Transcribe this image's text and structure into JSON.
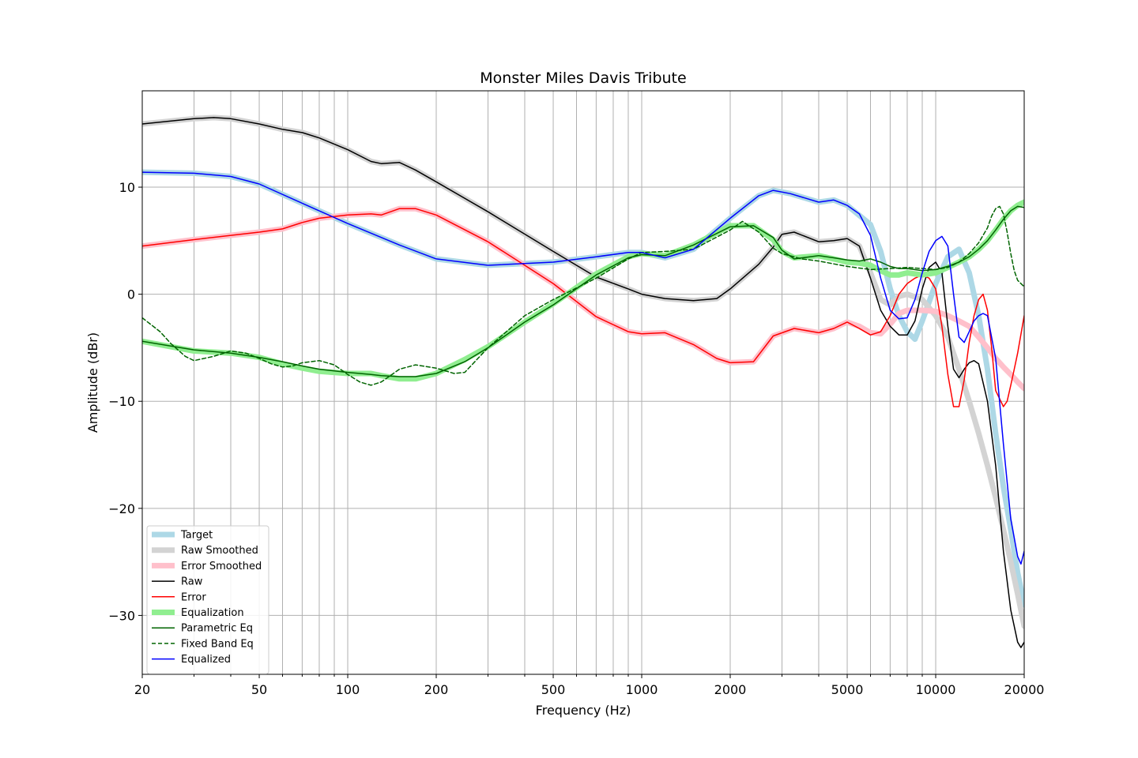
{
  "chart_data": {
    "type": "line",
    "title": "Monster Miles Davis Tribute",
    "xlabel": "Frequency (Hz)",
    "ylabel": "Amplitude (dBr)",
    "xscale": "log",
    "xlim": [
      20,
      20000
    ],
    "ylim": [
      -35.5,
      19.0
    ],
    "grid": true,
    "legend_position": "lower-left",
    "x_ticks": [
      20,
      50,
      100,
      200,
      500,
      1000,
      2000,
      5000,
      10000,
      20000
    ],
    "x_tick_labels": [
      "20",
      "50",
      "100",
      "200",
      "500",
      "1000",
      "2000",
      "5000",
      "10000",
      "20000"
    ],
    "y_ticks": [
      10,
      0,
      -10,
      -20,
      -30
    ],
    "y_tick_labels": [
      "10",
      "0",
      "−10",
      "−20",
      "−30"
    ],
    "series": [
      {
        "name": "Target",
        "color": "#add8e6",
        "style": "thick",
        "x": [
          20,
          30,
          40,
          50,
          70,
          100,
          150,
          200,
          300,
          500,
          700,
          900,
          1000,
          1200,
          1500,
          2000,
          2500,
          2800,
          3200,
          4000,
          4500,
          5000,
          6000,
          6500,
          7000,
          7500,
          8000,
          8500,
          9000,
          10000,
          11000,
          12000,
          13000,
          14000,
          15000,
          16000,
          17000,
          18000,
          19000,
          20000
        ],
        "y": [
          11.4,
          11.3,
          11.0,
          10.3,
          8.5,
          6.6,
          4.6,
          3.3,
          2.7,
          3.0,
          3.5,
          3.9,
          3.9,
          3.4,
          4.2,
          7.1,
          9.2,
          9.7,
          9.4,
          8.6,
          8.8,
          8.3,
          6.5,
          4.0,
          0.5,
          -2.0,
          -3.5,
          -4.2,
          -2.5,
          1.0,
          3.5,
          4.2,
          2.0,
          -2.0,
          -7.0,
          -13.0,
          -18.0,
          -22.0,
          -26.0,
          -29.0
        ]
      },
      {
        "name": "Raw Smoothed",
        "color": "#d3d3d3",
        "style": "thick",
        "x": [
          20,
          30,
          35,
          40,
          50,
          60,
          70,
          80,
          100,
          120,
          130,
          150,
          170,
          200,
          300,
          500,
          700,
          900,
          1000,
          1200,
          1500,
          1800,
          2000,
          2500,
          2800,
          3000,
          3300,
          4000,
          4500,
          5000,
          5500,
          6000,
          6500,
          7000,
          7500,
          8000,
          9000,
          10000,
          11000,
          12000,
          13000,
          14000,
          15000,
          16000,
          17000,
          18000,
          19000,
          20000
        ],
        "y": [
          15.9,
          16.4,
          16.5,
          16.4,
          15.9,
          15.4,
          15.1,
          14.6,
          13.5,
          12.4,
          12.2,
          12.3,
          11.6,
          10.5,
          7.7,
          4.0,
          1.6,
          0.5,
          0.0,
          -0.4,
          -0.6,
          -0.4,
          0.5,
          2.8,
          4.4,
          5.6,
          5.8,
          4.9,
          5.0,
          5.2,
          4.5,
          2.0,
          -0.5,
          -1.0,
          -0.2,
          0.0,
          -0.5,
          -2.0,
          -4.0,
          -7.0,
          -10.0,
          -13.0,
          -16.0,
          -19.0,
          -22.0,
          -25.0,
          -28.0,
          -31.0
        ]
      },
      {
        "name": "Error Smoothed",
        "color": "#ffc0cb",
        "style": "thick",
        "x": [
          20,
          30,
          40,
          50,
          60,
          70,
          80,
          100,
          120,
          130,
          150,
          170,
          200,
          300,
          500,
          700,
          900,
          1000,
          1200,
          1500,
          1800,
          2000,
          2400,
          2800,
          3300,
          4000,
          4500,
          5000,
          5500,
          6000,
          6500,
          7000,
          7500,
          8000,
          9000,
          10000,
          11000,
          12000,
          13000,
          14000,
          15000,
          16000,
          17000,
          18000,
          19000,
          20000
        ],
        "y": [
          4.5,
          5.1,
          5.5,
          5.8,
          6.1,
          6.7,
          7.1,
          7.4,
          7.5,
          7.4,
          8.0,
          8.0,
          7.4,
          4.9,
          1.0,
          -2.1,
          -3.5,
          -3.7,
          -3.6,
          -4.7,
          -6.0,
          -6.4,
          -6.3,
          -3.9,
          -3.2,
          -3.6,
          -3.2,
          -2.6,
          -3.0,
          -3.6,
          -3.7,
          -2.8,
          -1.8,
          -1.5,
          -1.5,
          -1.6,
          -2.0,
          -2.5,
          -3.0,
          -4.0,
          -5.0,
          -6.0,
          -6.8,
          -7.5,
          -8.2,
          -8.8
        ]
      },
      {
        "name": "Raw",
        "color": "#000000",
        "style": "thin",
        "x": [
          20,
          30,
          35,
          40,
          50,
          60,
          70,
          80,
          100,
          120,
          130,
          150,
          170,
          200,
          300,
          500,
          700,
          900,
          1000,
          1200,
          1500,
          1800,
          2000,
          2500,
          2800,
          3000,
          3300,
          4000,
          4500,
          5000,
          5500,
          6000,
          6500,
          7000,
          7500,
          8000,
          8500,
          9000,
          9500,
          10000,
          10500,
          11000,
          11500,
          12000,
          12500,
          13000,
          13500,
          14000,
          15000,
          16000,
          17000,
          18000,
          19000,
          19500,
          20000
        ],
        "y": [
          15.9,
          16.4,
          16.5,
          16.4,
          15.9,
          15.4,
          15.1,
          14.6,
          13.5,
          12.4,
          12.2,
          12.3,
          11.6,
          10.5,
          7.7,
          4.0,
          1.6,
          0.5,
          0.0,
          -0.4,
          -0.6,
          -0.4,
          0.5,
          2.8,
          4.4,
          5.6,
          5.8,
          4.9,
          5.0,
          5.2,
          4.5,
          1.5,
          -1.5,
          -3.0,
          -3.8,
          -3.8,
          -2.5,
          0.5,
          2.5,
          3.0,
          2.0,
          -3.0,
          -7.0,
          -7.8,
          -7.0,
          -6.4,
          -6.2,
          -6.5,
          -10.0,
          -16.0,
          -24.0,
          -29.5,
          -32.5,
          -33.0,
          -32.5
        ]
      },
      {
        "name": "Error",
        "color": "#ff0000",
        "style": "thin",
        "x": [
          20,
          30,
          40,
          50,
          60,
          70,
          80,
          100,
          120,
          130,
          150,
          170,
          200,
          300,
          500,
          700,
          900,
          1000,
          1200,
          1500,
          1800,
          2000,
          2400,
          2800,
          3300,
          4000,
          4500,
          5000,
          5500,
          6000,
          6500,
          7000,
          7500,
          8000,
          8500,
          9000,
          9500,
          10000,
          10500,
          11000,
          11500,
          12000,
          12500,
          13000,
          13500,
          14000,
          14500,
          15000,
          15500,
          16000,
          17000,
          17500,
          18000,
          18500,
          19000,
          20000
        ],
        "y": [
          4.5,
          5.1,
          5.5,
          5.8,
          6.1,
          6.7,
          7.1,
          7.4,
          7.5,
          7.4,
          8.0,
          8.0,
          7.4,
          4.9,
          1.0,
          -2.1,
          -3.5,
          -3.7,
          -3.6,
          -4.7,
          -6.0,
          -6.4,
          -6.3,
          -3.9,
          -3.2,
          -3.6,
          -3.2,
          -2.6,
          -3.2,
          -3.8,
          -3.5,
          -2.0,
          0.0,
          1.0,
          1.5,
          1.8,
          1.5,
          0.5,
          -3.0,
          -7.5,
          -10.5,
          -10.5,
          -8.0,
          -4.5,
          -2.0,
          -0.5,
          0.0,
          -1.5,
          -5.0,
          -9.0,
          -10.5,
          -10.0,
          -8.5,
          -7.0,
          -5.5,
          -2.0
        ]
      },
      {
        "name": "Equalization",
        "color": "#90ee90",
        "style": "thick",
        "x": [
          20,
          30,
          40,
          50,
          60,
          70,
          80,
          100,
          120,
          130,
          150,
          170,
          200,
          250,
          300,
          400,
          500,
          700,
          900,
          1000,
          1200,
          1500,
          2000,
          2400,
          2800,
          3000,
          3300,
          4000,
          4500,
          5000,
          5500,
          6000,
          6500,
          7000,
          7500,
          8000,
          9000,
          10000,
          11000,
          12000,
          13000,
          14000,
          15000,
          16000,
          17000,
          18000,
          19000,
          20000
        ],
        "y": [
          -4.4,
          -5.3,
          -5.5,
          -5.9,
          -6.5,
          -6.9,
          -7.2,
          -7.4,
          -7.4,
          -7.6,
          -7.9,
          -7.9,
          -7.4,
          -6.1,
          -4.9,
          -2.6,
          -0.9,
          1.9,
          3.5,
          3.8,
          3.6,
          4.6,
          6.4,
          6.4,
          5.1,
          4.0,
          3.4,
          3.6,
          3.3,
          3.0,
          2.9,
          2.7,
          2.2,
          1.8,
          1.8,
          2.0,
          1.8,
          2.0,
          2.5,
          3.0,
          3.5,
          4.2,
          5.0,
          6.0,
          7.0,
          7.8,
          8.3,
          8.6
        ]
      },
      {
        "name": "Parametric Eq",
        "color": "#006400",
        "style": "thin",
        "x": [
          20,
          30,
          40,
          50,
          60,
          70,
          80,
          100,
          120,
          130,
          150,
          170,
          200,
          250,
          300,
          400,
          500,
          700,
          900,
          1000,
          1200,
          1500,
          2000,
          2400,
          2800,
          3000,
          3300,
          4000,
          4500,
          5000,
          5500,
          6000,
          6500,
          7000,
          7500,
          8000,
          9000,
          10000,
          11000,
          12000,
          13000,
          14000,
          15000,
          16000,
          17000,
          18000,
          19000,
          20000
        ],
        "y": [
          -4.4,
          -5.2,
          -5.5,
          -5.9,
          -6.3,
          -6.7,
          -7.0,
          -7.3,
          -7.5,
          -7.6,
          -7.7,
          -7.7,
          -7.4,
          -6.3,
          -5.0,
          -2.6,
          -1.0,
          1.8,
          3.4,
          3.7,
          3.6,
          4.6,
          6.3,
          6.4,
          5.3,
          4.1,
          3.3,
          3.6,
          3.4,
          3.2,
          3.1,
          3.3,
          3.0,
          2.6,
          2.4,
          2.4,
          2.2,
          2.3,
          2.6,
          3.0,
          3.5,
          4.2,
          5.0,
          6.0,
          7.0,
          7.8,
          8.2,
          8.1
        ]
      },
      {
        "name": "Fixed Band Eq",
        "color": "#006400",
        "style": "dashed",
        "x": [
          20,
          23,
          25,
          28,
          30,
          35,
          40,
          45,
          50,
          55,
          60,
          65,
          70,
          80,
          90,
          100,
          110,
          120,
          130,
          150,
          170,
          200,
          230,
          250,
          300,
          400,
          500,
          700,
          900,
          1000,
          1200,
          1500,
          2000,
          2200,
          2500,
          2800,
          3000,
          3500,
          4000,
          5000,
          6000,
          7000,
          8000,
          9000,
          10000,
          11000,
          12000,
          13000,
          14000,
          15000,
          15500,
          16000,
          16500,
          17000,
          17500,
          18000,
          18500,
          19000,
          20000
        ],
        "y": [
          -2.2,
          -3.5,
          -4.6,
          -5.8,
          -6.2,
          -5.8,
          -5.3,
          -5.5,
          -6.0,
          -6.5,
          -6.8,
          -6.7,
          -6.4,
          -6.2,
          -6.6,
          -7.5,
          -8.2,
          -8.5,
          -8.2,
          -7.0,
          -6.6,
          -6.9,
          -7.4,
          -7.3,
          -5.0,
          -2.0,
          -0.5,
          1.5,
          3.3,
          3.9,
          4.0,
          4.2,
          6.0,
          6.8,
          5.8,
          4.3,
          3.8,
          3.3,
          3.1,
          2.6,
          2.3,
          2.4,
          2.5,
          2.4,
          2.3,
          2.5,
          3.0,
          3.8,
          4.8,
          6.2,
          7.3,
          8.0,
          8.2,
          7.5,
          5.8,
          3.8,
          2.2,
          1.3,
          0.7
        ]
      },
      {
        "name": "Equalized",
        "color": "#0000ff",
        "style": "thin",
        "x": [
          20,
          30,
          40,
          50,
          70,
          100,
          150,
          200,
          300,
          500,
          700,
          900,
          1000,
          1200,
          1500,
          2000,
          2500,
          2800,
          3200,
          4000,
          4500,
          5000,
          5500,
          6000,
          6500,
          7000,
          7500,
          8000,
          8500,
          9000,
          9500,
          10000,
          10500,
          11000,
          11500,
          12000,
          12500,
          13000,
          13500,
          14000,
          14500,
          15000,
          16000,
          17000,
          18000,
          19000,
          19500,
          20000
        ],
        "y": [
          11.4,
          11.3,
          11.0,
          10.3,
          8.5,
          6.6,
          4.6,
          3.3,
          2.7,
          3.0,
          3.5,
          3.9,
          3.9,
          3.4,
          4.2,
          7.1,
          9.2,
          9.7,
          9.4,
          8.6,
          8.8,
          8.3,
          7.5,
          5.5,
          1.5,
          -1.5,
          -2.3,
          -2.2,
          -0.5,
          2.0,
          4.0,
          5.0,
          5.4,
          4.5,
          0.0,
          -4.0,
          -4.5,
          -3.5,
          -2.5,
          -2.0,
          -1.8,
          -2.0,
          -6.0,
          -14.0,
          -21.0,
          -24.5,
          -25.2,
          -24.0
        ]
      }
    ]
  }
}
